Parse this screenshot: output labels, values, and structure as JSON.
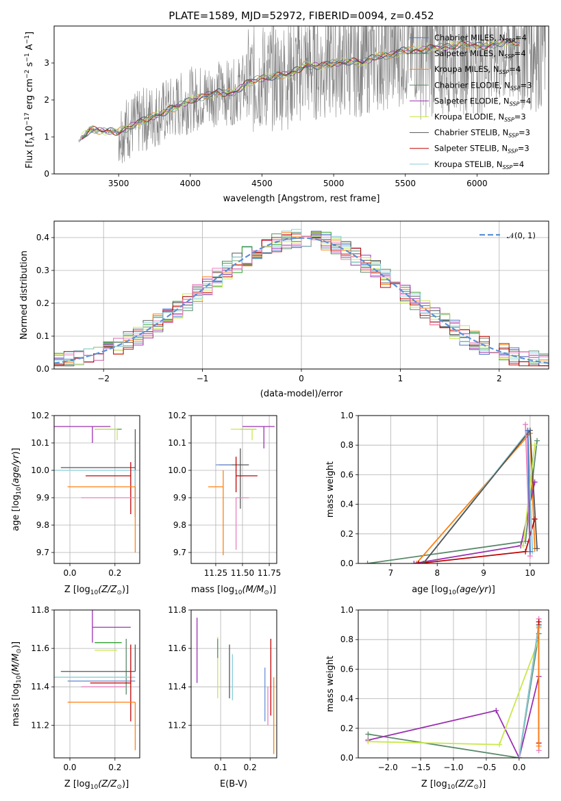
{
  "figure": {
    "title": "PLATE=1589, MJD=52972, FIBERID=0094, z=0.452"
  },
  "colors": {
    "chabrier_miles": "#4472c4",
    "salpeter_miles": "#2ca02c",
    "kroupa_miles": "#ff7f0e",
    "chabrier_elodie": "#5a8a6a",
    "salpeter_elodie": "#9b30b0",
    "kroupa_elodie": "#c8e84a",
    "chabrier_stelib": "#555555",
    "salpeter_stelib": "#c00000",
    "kroupa_stelib": "#87ced8",
    "normal_curve": "#5b8fd6",
    "spectrum": "#808080",
    "pink": "#e87fbf",
    "blue2": "#6a8fd8"
  },
  "chart_data": [
    {
      "id": "spectrum",
      "type": "line",
      "title": "PLATE=1589, MJD=52972, FIBERID=0094, z=0.452",
      "xlabel": "wavelength [Angstrom, rest frame]",
      "ylabel_main": "Flux [f",
      "ylabel_sub1": "λ",
      "ylabel_main2": "10",
      "ylabel_sup1": "−17",
      "ylabel_main3": " erg cm",
      "ylabel_sup2": "−2",
      "ylabel_main4": " s",
      "ylabel_sup3": "−1",
      "ylabel_main5": " A",
      "ylabel_sup4": "−1",
      "ylabel_end": "]",
      "xlim": [
        3050,
        6500
      ],
      "ylim": [
        0,
        4
      ],
      "xticks": [
        "3500",
        "4000",
        "4500",
        "5000",
        "5500",
        "6000"
      ],
      "yticks": [
        "0",
        "1",
        "2",
        "3"
      ],
      "continuum": [
        [
          3220,
          0.9
        ],
        [
          3300,
          1.2
        ],
        [
          3400,
          1.15
        ],
        [
          3500,
          1.15
        ],
        [
          3600,
          1.3
        ],
        [
          3700,
          1.5
        ],
        [
          3800,
          1.65
        ],
        [
          3900,
          1.8
        ],
        [
          4000,
          2.0
        ],
        [
          4100,
          2.1
        ],
        [
          4200,
          2.2
        ],
        [
          4300,
          2.2
        ],
        [
          4400,
          2.45
        ],
        [
          4500,
          2.6
        ],
        [
          4600,
          2.65
        ],
        [
          4700,
          2.7
        ],
        [
          4800,
          2.95
        ],
        [
          4900,
          2.9
        ],
        [
          5000,
          3.0
        ],
        [
          5100,
          3.05
        ],
        [
          5200,
          3.0
        ],
        [
          5300,
          3.2
        ],
        [
          5400,
          3.2
        ],
        [
          5500,
          3.35
        ],
        [
          5600,
          3.35
        ],
        [
          5700,
          3.4
        ],
        [
          5800,
          3.45
        ],
        [
          5900,
          3.5
        ],
        [
          6000,
          3.45
        ],
        [
          6100,
          3.5
        ],
        [
          6200,
          3.55
        ],
        [
          6300,
          3.55
        ]
      ],
      "legend": [
        {
          "pre": "Chabrier MILES, N",
          "sub": "SSP",
          "post": "=4",
          "color": "#4472c4"
        },
        {
          "pre": "Salpeter MILES, N",
          "sub": "SSP",
          "post": "=4",
          "color": "#2ca02c"
        },
        {
          "pre": "Kroupa MILES, N",
          "sub": "SSP",
          "post": "=4",
          "color": "#ff7f0e"
        },
        {
          "pre": "Chabrier ELODIE, N",
          "sub": "SSP",
          "post": "=3",
          "color": "#5a8a6a"
        },
        {
          "pre": "Salpeter ELODIE, N",
          "sub": "SSP",
          "post": "=4",
          "color": "#9b30b0"
        },
        {
          "pre": "Kroupa ELODIE, N",
          "sub": "SSP",
          "post": "=3",
          "color": "#c8e84a"
        },
        {
          "pre": "Chabrier STELIB, N",
          "sub": "SSP",
          "post": "=3",
          "color": "#555555"
        },
        {
          "pre": "Salpeter STELIB, N",
          "sub": "SSP",
          "post": "=3",
          "color": "#c00000"
        },
        {
          "pre": "Kroupa STELIB, N",
          "sub": "SSP",
          "post": "=4",
          "color": "#87ced8"
        }
      ]
    },
    {
      "id": "residuals",
      "type": "histogram",
      "xlabel": "(data-model)/error",
      "ylabel": "Normed distribution",
      "xlim": [
        -2.5,
        2.5
      ],
      "ylim": [
        0,
        0.45
      ],
      "xticks": [
        "−2",
        "−1",
        "0",
        "1",
        "2"
      ],
      "yticks": [
        "0.0",
        "0.1",
        "0.2",
        "0.3",
        "0.4"
      ],
      "legend_label": "𝒩(0, 1)",
      "bin_width": 0.1
    },
    {
      "id": "age_vs_Z",
      "type": "errorbar",
      "xlabel": "Z [log",
      "xlabel_sub": "10",
      "xlabel_mid": "(Z/Z",
      "xlabel_sub2": "⊙",
      "xlabel_end": ")]",
      "ylabel": "age  [log₁₀(age/yr)]",
      "xlim": [
        -0.07,
        0.31
      ],
      "ylim": [
        9.66,
        10.2
      ],
      "xticks": [
        "0.0",
        "0.2"
      ],
      "yticks": [
        "9.7",
        "9.8",
        "9.9",
        "10.0",
        "10.1",
        "10.2"
      ],
      "points": [
        {
          "x": 0.1,
          "y": 10.16,
          "xerr": [
            0.17,
            0.08
          ],
          "yerr": [
            0.06,
            0.0
          ],
          "color": "#9b30b0"
        },
        {
          "x": 0.23,
          "y": 10.15,
          "xerr": [
            0.12,
            0.0
          ],
          "yerr": [
            0.0,
            0.0
          ],
          "color": "#2ca02c"
        },
        {
          "x": 0.21,
          "y": 10.15,
          "xerr": [
            0.1,
            0.0
          ],
          "yerr": [
            0.04,
            0.0
          ],
          "color": "#c8e84a"
        },
        {
          "x": 0.29,
          "y": 10.01,
          "xerr": [
            0.33,
            0.0
          ],
          "yerr": [
            0.18,
            0.14
          ],
          "color": "#555555"
        },
        {
          "x": 0.29,
          "y": 10.0,
          "xerr": [
            0.36,
            0.0
          ],
          "yerr": [
            0.12,
            0.0
          ],
          "color": "#87ced8"
        },
        {
          "x": 0.27,
          "y": 9.98,
          "xerr": [
            0.2,
            0.0
          ],
          "yerr": [
            0.14,
            0.05
          ],
          "color": "#c00000"
        },
        {
          "x": 0.29,
          "y": 9.94,
          "xerr": [
            0.3,
            0.0
          ],
          "yerr": [
            0.24,
            0.0
          ],
          "color": "#ff7f0e"
        },
        {
          "x": 0.29,
          "y": 9.9,
          "xerr": [
            0.24,
            0.0
          ],
          "yerr": [
            0.0,
            0.0
          ],
          "color": "#e87fbf"
        }
      ]
    },
    {
      "id": "age_vs_mass",
      "type": "errorbar",
      "xlabel": "mass [log",
      "xlabel_sub": "10",
      "xlabel_mid": "(M/M",
      "xlabel_sub2": "⊙",
      "xlabel_end": ")]",
      "xlim": [
        11.02,
        11.82
      ],
      "ylim": [
        9.66,
        10.2
      ],
      "xticks": [
        "11.25",
        "11.50",
        "11.75"
      ],
      "yticks": [
        "9.7",
        "9.8",
        "9.9",
        "10.0",
        "10.1",
        "10.2"
      ],
      "points": [
        {
          "x": 11.7,
          "y": 10.16,
          "xerr": [
            0.2,
            0.1
          ],
          "yerr": [
            0.08,
            0.0
          ],
          "color": "#9b30b0"
        },
        {
          "x": 11.63,
          "y": 10.15,
          "xerr": [
            0.15,
            0.0
          ],
          "yerr": [
            0.0,
            0.0
          ],
          "color": "#2ca02c"
        },
        {
          "x": 11.59,
          "y": 10.15,
          "xerr": [
            0.2,
            0.04
          ],
          "yerr": [
            0.04,
            0.0
          ],
          "color": "#c8e84a"
        },
        {
          "x": 11.48,
          "y": 10.02,
          "xerr": [
            0.2,
            0.08
          ],
          "yerr": [
            0.16,
            0.06
          ],
          "color": "#555555"
        },
        {
          "x": 11.46,
          "y": 10.0,
          "xerr": [
            0.0,
            0.0
          ],
          "yerr": [
            0.0,
            0.0
          ],
          "color": "#87ced8"
        },
        {
          "x": 11.44,
          "y": 9.98,
          "xerr": [
            0.0,
            0.2
          ],
          "yerr": [
            0.06,
            0.07
          ],
          "color": "#c00000"
        },
        {
          "x": 11.32,
          "y": 9.94,
          "xerr": [
            0.14,
            0.0
          ],
          "yerr": [
            0.25,
            0.06
          ],
          "color": "#ff7f0e"
        },
        {
          "x": 11.44,
          "y": 9.9,
          "xerr": [
            0.0,
            0.12
          ],
          "yerr": [
            0.19,
            0.0
          ],
          "color": "#e87fbf"
        },
        {
          "x": 11.4,
          "y": 10.02,
          "xerr": [
            0.15,
            0.0
          ],
          "yerr": [
            0.0,
            0.0
          ],
          "color": "#6a8fd8"
        }
      ]
    },
    {
      "id": "massweight_vs_age",
      "type": "line",
      "xlabel": "age  [log",
      "xlabel_sub": "10",
      "xlabel_mid": "(age/yr)]",
      "ylabel": "mass weight",
      "xlim": [
        6.3,
        10.4
      ],
      "ylim": [
        0,
        1.0
      ],
      "xticks": [
        "7",
        "8",
        "9",
        "10"
      ],
      "yticks": [
        "0.0",
        "0.2",
        "0.4",
        "0.6",
        "0.8",
        "1.0"
      ],
      "series": [
        {
          "color": "#5a8a6a",
          "x": [
            6.5,
            9.9,
            10.15
          ],
          "y": [
            0.0,
            0.15,
            0.83
          ]
        },
        {
          "color": "#ff7f0e",
          "x": [
            7.55,
            10.0,
            10.1
          ],
          "y": [
            0.0,
            0.88,
            0.1
          ]
        },
        {
          "color": "#9b30b0",
          "x": [
            7.5,
            9.8,
            10.1
          ],
          "y": [
            0.0,
            0.12,
            0.55
          ]
        },
        {
          "color": "#c00000",
          "x": [
            7.6,
            9.9,
            10.1
          ],
          "y": [
            0.0,
            0.08,
            0.3
          ]
        },
        {
          "color": "#87ced8",
          "x": [
            7.7,
            9.95,
            10.05
          ],
          "y": [
            0.0,
            0.89,
            0.08
          ]
        },
        {
          "color": "#555555",
          "x": [
            7.7,
            10.0,
            10.15
          ],
          "y": [
            0.0,
            0.9,
            0.1
          ]
        },
        {
          "color": "#c8e84a",
          "x": [
            9.85,
            10.1
          ],
          "y": [
            0.12,
            0.8
          ]
        },
        {
          "color": "#e87fbf",
          "x": [
            9.9,
            10.0
          ],
          "y": [
            0.94,
            0.05
          ]
        },
        {
          "color": "#4472c4",
          "x": [
            9.95,
            10.0
          ],
          "y": [
            0.9,
            0.08
          ]
        }
      ]
    },
    {
      "id": "mass_vs_Z",
      "type": "errorbar",
      "xlabel": "Z [log",
      "xlabel_sub": "10",
      "xlabel_mid": "(Z/Z",
      "xlabel_sub2": "⊙",
      "xlabel_end": ")]",
      "ylabel": "mass [log₁₀(M/M⊙)]",
      "xlim": [
        -0.07,
        0.31
      ],
      "ylim": [
        11.03,
        11.8
      ],
      "xticks": [
        "0.0",
        "0.2"
      ],
      "yticks": [
        "11.2",
        "11.4",
        "11.6",
        "11.8"
      ],
      "points": [
        {
          "x": 0.1,
          "y": 11.71,
          "xerr": [
            0.0,
            0.17
          ],
          "yerr": [
            0.08,
            0.1
          ],
          "color": "#9b30b0"
        },
        {
          "x": 0.23,
          "y": 11.63,
          "xerr": [
            0.12,
            0.0
          ],
          "yerr": [
            0.0,
            0.0
          ],
          "color": "#2ca02c"
        },
        {
          "x": 0.21,
          "y": 11.59,
          "xerr": [
            0.1,
            0.0
          ],
          "yerr": [
            0.0,
            0.0
          ],
          "color": "#c8e84a"
        },
        {
          "x": 0.25,
          "y": 11.5,
          "xerr": [
            0.0,
            0.0
          ],
          "yerr": [
            0.14,
            0.15
          ],
          "color": "#5a8a6a"
        },
        {
          "x": 0.29,
          "y": 11.48,
          "xerr": [
            0.33,
            0.0
          ],
          "yerr": [
            0.0,
            0.14
          ],
          "color": "#555555"
        },
        {
          "x": 0.29,
          "y": 11.45,
          "xerr": [
            0.36,
            0.0
          ],
          "yerr": [
            0.0,
            0.0
          ],
          "color": "#87ced8"
        },
        {
          "x": 0.29,
          "y": 11.43,
          "xerr": [
            0.3,
            0.0
          ],
          "yerr": [
            0.0,
            0.0
          ],
          "color": "#6a8fd8"
        },
        {
          "x": 0.27,
          "y": 11.42,
          "xerr": [
            0.18,
            0.0
          ],
          "yerr": [
            0.2,
            0.2
          ],
          "color": "#c00000"
        },
        {
          "x": 0.29,
          "y": 11.32,
          "xerr": [
            0.3,
            0.0
          ],
          "yerr": [
            0.25,
            0.0
          ],
          "color": "#ff7f0e"
        },
        {
          "x": 0.25,
          "y": 11.4,
          "xerr": [
            0.2,
            0.0
          ],
          "yerr": [
            0.0,
            0.0
          ],
          "color": "#e87fbf"
        }
      ]
    },
    {
      "id": "mass_vs_EBV",
      "type": "errorbar",
      "xlabel": "E(B-V)",
      "xlim": [
        0.0,
        0.29
      ],
      "ylim": [
        11.03,
        11.8
      ],
      "xticks": [
        "0.1",
        "0.2"
      ],
      "yticks": [
        "11.2",
        "11.4",
        "11.6",
        "11.8"
      ],
      "points": [
        {
          "x": 0.02,
          "y": 11.59,
          "yerr": [
            0.17,
            0.17
          ],
          "color": "#9b30b0"
        },
        {
          "x": 0.09,
          "y": 11.5,
          "yerr": [
            0.16,
            0.16
          ],
          "color": "#c8e84a"
        },
        {
          "x": 0.09,
          "y": 11.6,
          "yerr": [
            0.05,
            0.05
          ],
          "color": "#5a8a6a"
        },
        {
          "x": 0.13,
          "y": 11.48,
          "yerr": [
            0.14,
            0.14
          ],
          "color": "#555555"
        },
        {
          "x": 0.14,
          "y": 11.45,
          "yerr": [
            0.12,
            0.12
          ],
          "color": "#87ced8"
        },
        {
          "x": 0.25,
          "y": 11.36,
          "yerr": [
            0.14,
            0.14
          ],
          "color": "#6a8fd8"
        },
        {
          "x": 0.26,
          "y": 11.3,
          "yerr": [
            0.1,
            0.1
          ],
          "color": "#e87fbf"
        },
        {
          "x": 0.27,
          "y": 11.45,
          "yerr": [
            0.2,
            0.2
          ],
          "color": "#c00000"
        },
        {
          "x": 0.28,
          "y": 11.25,
          "yerr": [
            0.2,
            0.2
          ],
          "color": "#ff7f0e"
        }
      ]
    },
    {
      "id": "massweight_vs_Z",
      "type": "line",
      "xlabel": "Z [log",
      "xlabel_sub": "10",
      "xlabel_mid": "(Z/Z",
      "xlabel_sub2": "⊙",
      "xlabel_end": ")]",
      "ylabel": "mass weight",
      "xlim": [
        -2.45,
        0.45
      ],
      "ylim": [
        0,
        1.0
      ],
      "xticks": [
        "−2.0",
        "−1.5",
        "−1.0",
        "−0.5",
        "0.0"
      ],
      "yticks": [
        "0.0",
        "0.2",
        "0.4",
        "0.6",
        "0.8",
        "1.0"
      ],
      "series": [
        {
          "color": "#5a8a6a",
          "x": [
            -2.3,
            0.0,
            0.3
          ],
          "y": [
            0.16,
            0.0,
            0.84
          ]
        },
        {
          "color": "#9b30b0",
          "x": [
            -2.3,
            -0.35,
            0.0,
            0.3
          ],
          "y": [
            0.12,
            0.32,
            0.0,
            0.55
          ]
        },
        {
          "color": "#c8e84a",
          "x": [
            -2.3,
            -0.3,
            0.3
          ],
          "y": [
            0.11,
            0.09,
            0.8
          ]
        },
        {
          "color": "#555555",
          "x": [
            0.0,
            0.3
          ],
          "y": [
            0.0,
            0.9
          ]
        },
        {
          "color": "#87ced8",
          "x": [
            0.0,
            0.3
          ],
          "y": [
            0.0,
            0.89
          ]
        },
        {
          "color": "#e87fbf",
          "x": [
            0.3,
            0.3
          ],
          "y": [
            0.94,
            0.05
          ]
        },
        {
          "color": "#c00000",
          "x": [
            0.3,
            0.3
          ],
          "y": [
            0.92,
            0.1
          ]
        },
        {
          "color": "#ff7f0e",
          "x": [
            0.3,
            0.3
          ],
          "y": [
            0.88,
            0.08
          ]
        }
      ]
    }
  ]
}
